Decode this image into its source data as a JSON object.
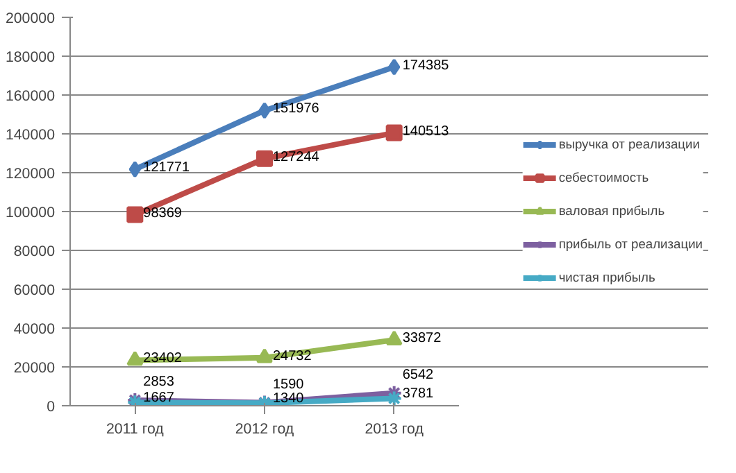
{
  "chart_data": {
    "type": "line",
    "categories": [
      "2011 год",
      "2012 год",
      "2013 год"
    ],
    "series": [
      {
        "name": "выручка от реализации",
        "color": "#4a7ebb",
        "marker": "diamond",
        "values": [
          121771,
          151976,
          174385
        ]
      },
      {
        "name": "себестоимость",
        "color": "#be4b48",
        "marker": "square",
        "values": [
          98369,
          127244,
          140513
        ]
      },
      {
        "name": "валовая прибыль",
        "color": "#98b954",
        "marker": "triangle",
        "values": [
          23402,
          24732,
          33872
        ]
      },
      {
        "name": "прибыль от реализации",
        "color": "#7d60a0",
        "marker": "cross",
        "values": [
          2853,
          1590,
          6542
        ]
      },
      {
        "name": "чистая прибыль",
        "color": "#46aac5",
        "marker": "cross",
        "values": [
          1667,
          1340,
          3781
        ]
      }
    ],
    "ylim": [
      0,
      200000
    ],
    "yticks": [
      0,
      20000,
      40000,
      60000,
      80000,
      100000,
      120000,
      140000,
      160000,
      180000,
      200000
    ],
    "grid": "y",
    "legend": "right",
    "data_labels": true
  }
}
